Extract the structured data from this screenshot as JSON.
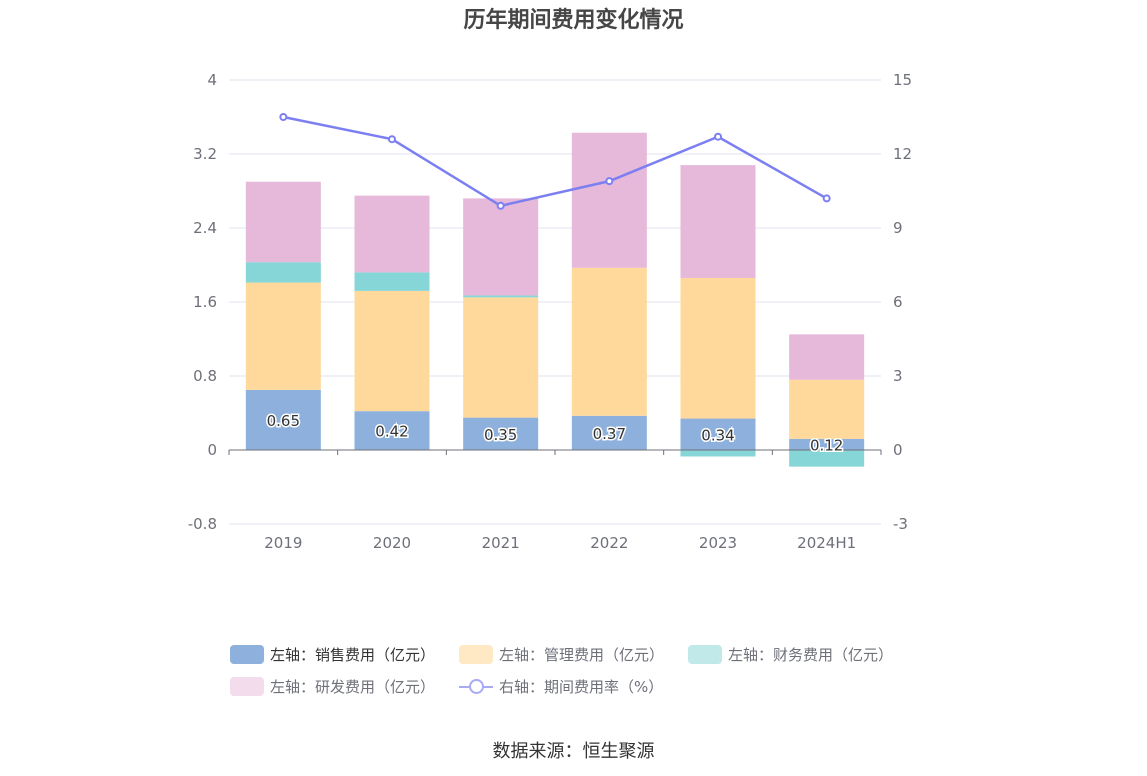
{
  "title": "历年期间费用变化情况",
  "source": "数据来源：恒生聚源",
  "colors": {
    "sales": "#8eb0dc",
    "admin": "#ffd99b",
    "finance": "#86d6d8",
    "rd": "#e6b8d9",
    "rate": "#7c7ff1",
    "grid": "#e0e3ef",
    "axis": "#6e7079"
  },
  "legend": [
    {
      "label": "左轴：销售费用（亿元）",
      "color": "#8eb0dc",
      "type": "swatch"
    },
    {
      "label": "左轴：管理费用（亿元）",
      "color": "#ffe9c4",
      "type": "swatch"
    },
    {
      "label": "左轴：财务费用（亿元）",
      "color": "#c2e9ea",
      "type": "swatch"
    },
    {
      "label": "左轴：研发费用（亿元）",
      "color": "#f3dcec",
      "type": "swatch"
    },
    {
      "label": "右轴：期间费用率（%）",
      "color": "#a9aaf5",
      "type": "line"
    }
  ],
  "chart_data": {
    "type": "bar",
    "stacked": true,
    "categories": [
      "2019",
      "2020",
      "2021",
      "2022",
      "2023",
      "2024H1"
    ],
    "series": [
      {
        "name": "左轴：销售费用（亿元）",
        "axis": "left",
        "values": [
          0.65,
          0.42,
          0.35,
          0.37,
          0.34,
          0.12
        ],
        "labels": [
          "0.65",
          "0.42",
          "0.35",
          "0.37",
          "0.34",
          "0.12"
        ]
      },
      {
        "name": "左轴：管理费用（亿元）",
        "axis": "left",
        "values": [
          1.16,
          1.3,
          1.3,
          1.6,
          1.52,
          0.64
        ]
      },
      {
        "name": "左轴：财务费用（亿元）",
        "axis": "left",
        "values": [
          0.22,
          0.2,
          0.02,
          0.0,
          -0.07,
          -0.18
        ]
      },
      {
        "name": "左轴：研发费用（亿元）",
        "axis": "left",
        "values": [
          0.87,
          0.83,
          1.05,
          1.46,
          1.22,
          0.49
        ]
      },
      {
        "name": "右轴：期间费用率（%）",
        "axis": "right",
        "type": "line",
        "values": [
          13.5,
          12.6,
          9.9,
          10.9,
          12.7,
          10.2
        ]
      }
    ],
    "left_axis": {
      "ylim": [
        -0.8,
        4
      ],
      "ticks": [
        "-0.8",
        "0",
        "0.8",
        "1.6",
        "2.4",
        "3.2",
        "4"
      ]
    },
    "right_axis": {
      "ylim": [
        -3,
        15
      ],
      "ticks": [
        "-3",
        "0",
        "3",
        "6",
        "9",
        "12",
        "15"
      ]
    },
    "grid": true,
    "legend_position": "bottom"
  }
}
